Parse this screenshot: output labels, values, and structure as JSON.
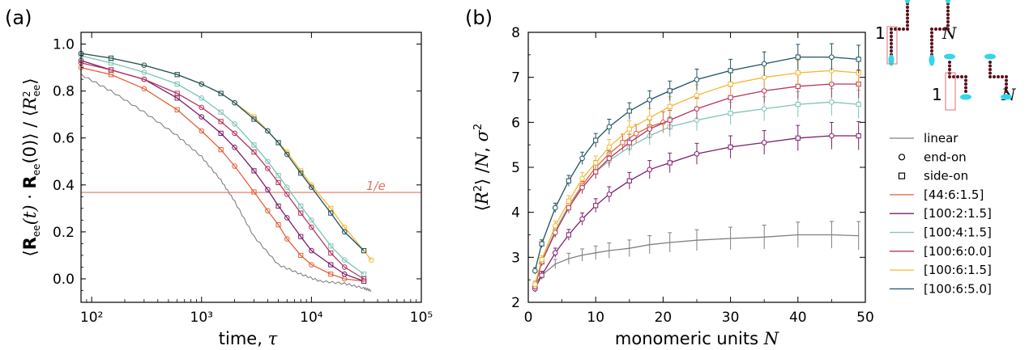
{
  "chart_data": [
    {
      "type": "line",
      "panel": "(a)",
      "xscale": "log",
      "xlim": [
        80,
        100000
      ],
      "ylim": [
        -0.1,
        1.05
      ],
      "grid": false,
      "xlabel": "time, τ",
      "ylabel": "⟨R_ee(t) · R_ee(0)⟩ / ⟨R²_ee⟩",
      "xticks": [
        100,
        1000,
        10000,
        100000
      ],
      "xtick_labels": [
        "10²",
        "10³",
        "10⁴",
        "10⁵"
      ],
      "yticks": [
        0.0,
        0.2,
        0.4,
        0.6,
        0.8,
        1.0
      ],
      "ytick_labels": [
        "0.0",
        "0.2",
        "0.4",
        "0.6",
        "0.8",
        "1.0"
      ],
      "hline": {
        "y": 0.368,
        "label": "1/e",
        "color": "#e0745f"
      },
      "series": [
        {
          "name": "linear",
          "color": "#808080",
          "marker": "none",
          "x": [
            80,
            150,
            300,
            600,
            1000,
            1500,
            2000,
            3000,
            5000,
            8000,
            12000,
            20000,
            30000,
            35000
          ],
          "y": [
            0.87,
            0.8,
            0.71,
            0.61,
            0.52,
            0.42,
            0.33,
            0.18,
            0.06,
            0.02,
            -0.01,
            -0.02,
            -0.04,
            -0.05
          ]
        },
        {
          "name": "[44:6:1.5]",
          "color": "#e3623b",
          "x": [
            80,
            150,
            300,
            600,
            1000,
            1500,
            2000,
            3000,
            4000,
            5000,
            6000,
            8000,
            10000,
            15000,
            20000,
            30000
          ],
          "y": [
            0.9,
            0.87,
            0.81,
            0.72,
            0.63,
            0.55,
            0.48,
            0.37,
            0.29,
            0.23,
            0.17,
            0.1,
            0.06,
            0.02,
            0.0,
            -0.01
          ]
        },
        {
          "name": "[100:2:1.5]",
          "color": "#7d1c6c",
          "x": [
            80,
            150,
            300,
            600,
            1000,
            1500,
            2000,
            3000,
            4000,
            5000,
            6000,
            8000,
            10000,
            15000,
            20000,
            30000
          ],
          "y": [
            0.93,
            0.89,
            0.85,
            0.77,
            0.69,
            0.62,
            0.56,
            0.46,
            0.38,
            0.31,
            0.26,
            0.18,
            0.12,
            0.06,
            0.02,
            -0.01
          ]
        },
        {
          "name": "[100:4:1.5]",
          "color": "#7ec4b7",
          "x": [
            80,
            150,
            300,
            600,
            1000,
            1500,
            2000,
            3000,
            4000,
            5000,
            6000,
            8000,
            10000,
            15000,
            20000,
            30000
          ],
          "y": [
            0.95,
            0.92,
            0.88,
            0.83,
            0.77,
            0.71,
            0.66,
            0.57,
            0.5,
            0.44,
            0.39,
            0.31,
            0.25,
            0.14,
            0.08,
            0.02
          ]
        },
        {
          "name": "[100:6:0.0]",
          "color": "#b5365d",
          "x": [
            80,
            150,
            300,
            600,
            1000,
            1500,
            2000,
            3000,
            4000,
            5000,
            6000,
            8000,
            10000,
            15000,
            20000,
            30000
          ],
          "y": [
            0.92,
            0.89,
            0.85,
            0.79,
            0.73,
            0.67,
            0.62,
            0.54,
            0.47,
            0.41,
            0.36,
            0.28,
            0.22,
            0.11,
            0.05,
            0.0
          ]
        },
        {
          "name": "[100:6:1.5]",
          "color": "#f5b731",
          "x": [
            80,
            150,
            300,
            600,
            1000,
            1500,
            2000,
            3000,
            4000,
            5000,
            6000,
            8000,
            10000,
            15000,
            20000,
            30000,
            35000
          ],
          "y": [
            0.96,
            0.94,
            0.91,
            0.87,
            0.83,
            0.79,
            0.75,
            0.69,
            0.63,
            0.58,
            0.54,
            0.46,
            0.4,
            0.3,
            0.22,
            0.12,
            0.08
          ]
        },
        {
          "name": "[100:6:5.0]",
          "color": "#1f5363",
          "x": [
            80,
            150,
            300,
            600,
            1000,
            1500,
            2000,
            3000,
            4000,
            5000,
            6000,
            8000,
            10000,
            15000,
            20000,
            30000
          ],
          "y": [
            0.96,
            0.94,
            0.91,
            0.87,
            0.83,
            0.79,
            0.75,
            0.68,
            0.63,
            0.58,
            0.53,
            0.45,
            0.39,
            0.28,
            0.2,
            0.12
          ]
        }
      ]
    },
    {
      "type": "line",
      "panel": "(b)",
      "xlim": [
        0,
        50
      ],
      "ylim": [
        2,
        8
      ],
      "grid": false,
      "xlabel": "monomeric units N",
      "ylabel": "⟨R²⟩ / N, σ²",
      "xticks": [
        0,
        10,
        20,
        30,
        40,
        50
      ],
      "yticks": [
        2,
        3,
        4,
        5,
        6,
        7,
        8
      ],
      "error_bars": true,
      "series": [
        {
          "name": "linear",
          "color": "#808080",
          "marker": "none",
          "x": [
            1,
            2,
            4,
            6,
            8,
            10,
            12,
            15,
            18,
            21,
            25,
            30,
            35,
            40,
            45,
            49
          ],
          "y": [
            2.4,
            2.6,
            2.85,
            2.97,
            3.05,
            3.1,
            3.15,
            3.2,
            3.28,
            3.33,
            3.38,
            3.42,
            3.45,
            3.5,
            3.5,
            3.48
          ]
        },
        {
          "name": "[44:6:1.5]",
          "color": "#e3623b",
          "x": [
            1,
            2,
            4,
            6,
            8,
            10,
            12,
            14,
            16,
            18,
            20
          ],
          "y": [
            2.35,
            2.9,
            3.55,
            4.15,
            4.6,
            5.0,
            5.3,
            5.55,
            5.75,
            5.9,
            6.0
          ]
        },
        {
          "name": "[100:2:1.5]",
          "color": "#7d1c6c",
          "x": [
            1,
            2,
            4,
            6,
            8,
            10,
            12,
            15,
            18,
            21,
            25,
            30,
            35,
            40,
            45,
            49
          ],
          "y": [
            2.3,
            2.6,
            3.1,
            3.5,
            3.85,
            4.15,
            4.4,
            4.7,
            4.95,
            5.1,
            5.3,
            5.45,
            5.55,
            5.65,
            5.7,
            5.7
          ]
        },
        {
          "name": "[100:4:1.5]",
          "color": "#7ec4b7",
          "x": [
            1,
            2,
            4,
            6,
            8,
            10,
            12,
            15,
            18,
            21,
            25,
            30,
            35,
            40,
            45,
            49
          ],
          "y": [
            2.4,
            2.9,
            3.6,
            4.15,
            4.55,
            4.9,
            5.15,
            5.45,
            5.7,
            5.9,
            6.05,
            6.2,
            6.3,
            6.4,
            6.45,
            6.4
          ]
        },
        {
          "name": "[100:6:0.0]",
          "color": "#b5365d",
          "x": [
            1,
            2,
            4,
            6,
            8,
            10,
            12,
            15,
            18,
            21,
            25,
            30,
            35,
            40,
            45,
            49
          ],
          "y": [
            2.35,
            2.9,
            3.55,
            4.1,
            4.55,
            4.9,
            5.2,
            5.55,
            5.85,
            6.05,
            6.3,
            6.55,
            6.7,
            6.8,
            6.85,
            6.85
          ]
        },
        {
          "name": "[100:6:1.5]",
          "color": "#f5b731",
          "x": [
            1,
            2,
            4,
            6,
            8,
            10,
            12,
            15,
            18,
            21,
            25,
            30,
            35,
            40,
            45,
            49
          ],
          "y": [
            2.4,
            2.95,
            3.7,
            4.25,
            4.75,
            5.1,
            5.45,
            5.85,
            6.1,
            6.35,
            6.6,
            6.85,
            7.0,
            7.1,
            7.15,
            7.1
          ]
        },
        {
          "name": "[100:6:5.0]",
          "color": "#1f5363",
          "x": [
            1,
            2,
            4,
            6,
            8,
            10,
            12,
            15,
            18,
            21,
            25,
            30,
            35,
            40,
            45,
            49
          ],
          "y": [
            2.7,
            3.3,
            4.1,
            4.7,
            5.2,
            5.6,
            5.9,
            6.25,
            6.5,
            6.7,
            6.95,
            7.15,
            7.3,
            7.45,
            7.45,
            7.4
          ]
        }
      ]
    }
  ],
  "figure": {
    "panel_a_label": "(a)",
    "panel_b_label": "(b)",
    "hline_label": "1/e",
    "xlabel_a_text": "time, ",
    "xlabel_a_symbol": "τ",
    "xlabel_b_text": "monomeric units ",
    "xlabel_b_symbol": "N",
    "inset_top": {
      "left": "1",
      "right": "N"
    },
    "inset_bottom": {
      "left": "1",
      "right": "N"
    }
  },
  "legend": {
    "placement": "right of panel (b)",
    "items": [
      {
        "label": "linear",
        "kind": "line",
        "color": "#808080"
      },
      {
        "label": "end-on",
        "kind": "circle",
        "color": "#000000"
      },
      {
        "label": "side-on",
        "kind": "square",
        "color": "#000000"
      },
      {
        "label": "[44:6:1.5]",
        "kind": "line",
        "color": "#e3623b"
      },
      {
        "label": "[100:2:1.5]",
        "kind": "line",
        "color": "#7d1c6c"
      },
      {
        "label": "[100:4:1.5]",
        "kind": "line",
        "color": "#7ec4b7"
      },
      {
        "label": "[100:6:0.0]",
        "kind": "line",
        "color": "#b5365d"
      },
      {
        "label": "[100:6:1.5]",
        "kind": "line",
        "color": "#f5b731"
      },
      {
        "label": "[100:6:5.0]",
        "kind": "line",
        "color": "#1f5363"
      }
    ]
  }
}
